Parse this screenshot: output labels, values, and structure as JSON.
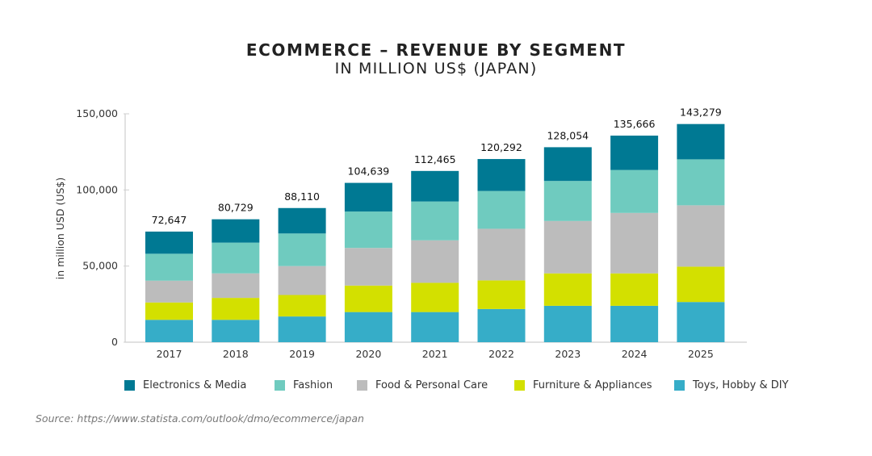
{
  "chart_data": {
    "type": "bar",
    "stacked": true,
    "title": "ECOMMERCE – REVENUE BY SEGMENT",
    "subtitle": "IN MILLION US$ (JAPAN)",
    "xlabel": "",
    "ylabel": "in million USD (US$)",
    "ylim": [
      0,
      150000
    ],
    "yticks": [
      0,
      50000,
      100000,
      150000
    ],
    "ytick_labels": [
      "0",
      "50,000",
      "100,000",
      "150,000"
    ],
    "categories": [
      "2017",
      "2018",
      "2019",
      "2020",
      "2021",
      "2022",
      "2023",
      "2024",
      "2025"
    ],
    "totals": [
      72647,
      80729,
      88110,
      104639,
      112465,
      120292,
      128054,
      135666,
      143279
    ],
    "total_labels": [
      "72,647",
      "80,729",
      "88,110",
      "104,639",
      "112,465",
      "120,292",
      "128,054",
      "135,666",
      "143,279"
    ],
    "legend_position": "bottom",
    "series": [
      {
        "name": "Toys, Hobby & DIY",
        "color": "#36adc8",
        "values": [
          14700,
          14700,
          16900,
          19800,
          19800,
          21800,
          23900,
          23900,
          26400
        ]
      },
      {
        "name": "Furniture & Appliances",
        "color": "#d3e000",
        "values": [
          11400,
          14400,
          14100,
          17400,
          19200,
          18800,
          21300,
          21300,
          23200
        ]
      },
      {
        "name": "Food & Personal Care",
        "color": "#bcbcbc",
        "values": [
          14300,
          16100,
          19000,
          24700,
          27900,
          33900,
          34400,
          39700,
          40300
        ]
      },
      {
        "name": "Fashion",
        "color": "#6fcbbf",
        "values": [
          17700,
          20200,
          21400,
          23900,
          25500,
          24800,
          26300,
          28200,
          30200
        ]
      },
      {
        "name": "Electronics & Media",
        "color": "#007993",
        "values": [
          14547,
          15329,
          16710,
          18839,
          20065,
          20992,
          22154,
          22566,
          23179
        ]
      }
    ],
    "legend_order": [
      "Electronics & Media",
      "Fashion",
      "Food & Personal Care",
      "Furniture & Appliances",
      "Toys, Hobby & DIY"
    ]
  },
  "source": "Source: https://www.statista.com/outlook/dmo/ecommerce/japan"
}
